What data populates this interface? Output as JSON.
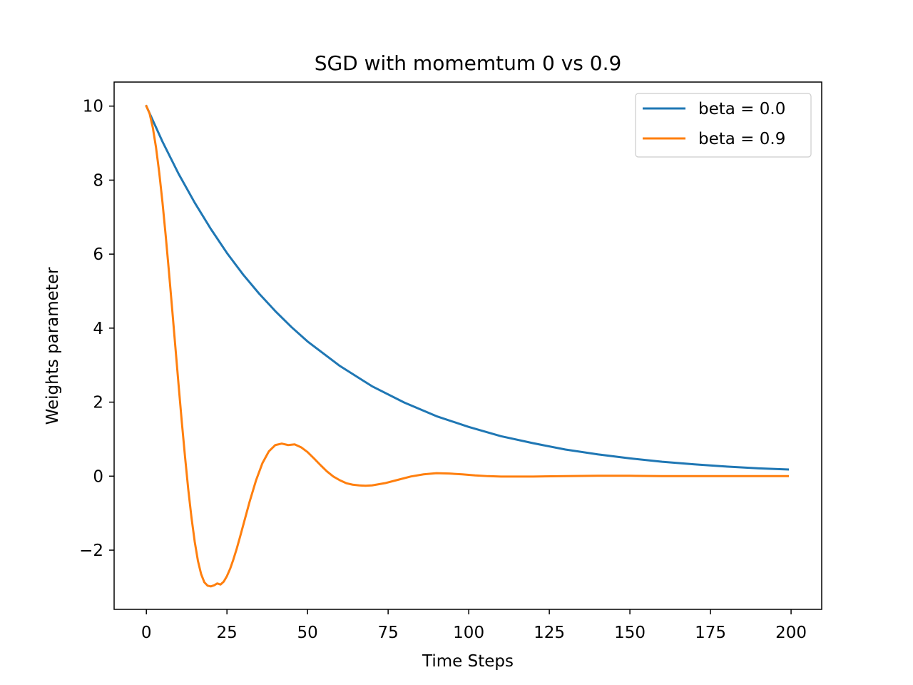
{
  "chart_data": {
    "type": "line",
    "title": "SGD with momemtum 0 vs 0.9",
    "xlabel": "Time Steps",
    "ylabel": "Weights parameter",
    "xlim": [
      -10,
      209.5
    ],
    "ylim": [
      -3.6,
      10.65
    ],
    "xticks": [
      0,
      25,
      50,
      75,
      100,
      125,
      150,
      175,
      200
    ],
    "xtick_labels": [
      "0",
      "25",
      "50",
      "75",
      "100",
      "125",
      "150",
      "175",
      "200"
    ],
    "yticks": [
      -2,
      0,
      2,
      4,
      6,
      8,
      10
    ],
    "ytick_labels": [
      "−2",
      "0",
      "2",
      "4",
      "6",
      "8",
      "10"
    ],
    "grid": false,
    "legend_position": "top-right",
    "series": [
      {
        "name": "beta = 0.0",
        "color": "#1f77b4",
        "x": [
          0,
          5,
          10,
          15,
          20,
          25,
          30,
          35,
          40,
          45,
          50,
          60,
          70,
          80,
          90,
          100,
          110,
          120,
          130,
          140,
          150,
          160,
          170,
          180,
          190,
          199
        ],
        "y": [
          10.0,
          9.04,
          8.17,
          7.39,
          6.68,
          6.03,
          5.45,
          4.93,
          4.46,
          4.03,
          3.64,
          2.98,
          2.43,
          1.99,
          1.62,
          1.33,
          1.08,
          0.89,
          0.72,
          0.59,
          0.48,
          0.39,
          0.32,
          0.26,
          0.21,
          0.18
        ]
      },
      {
        "name": "beta = 0.9",
        "color": "#ff7f0e",
        "x": [
          0,
          1,
          2,
          3,
          4,
          5,
          6,
          7,
          8,
          9,
          10,
          11,
          12,
          13,
          14,
          15,
          16,
          17,
          18,
          19,
          20,
          21,
          22,
          23,
          24,
          25,
          26,
          27,
          28,
          29,
          30,
          32,
          34,
          36,
          38,
          40,
          42,
          44,
          46,
          48,
          50,
          52,
          54,
          56,
          58,
          60,
          62,
          64,
          66,
          68,
          70,
          74,
          78,
          82,
          86,
          90,
          94,
          98,
          102,
          106,
          110,
          115,
          120,
          130,
          140,
          150,
          160,
          170,
          180,
          190,
          199
        ],
        "y": [
          10.0,
          9.8,
          9.42,
          8.88,
          8.2,
          7.4,
          6.5,
          5.53,
          4.52,
          3.49,
          2.46,
          1.46,
          0.52,
          -0.36,
          -1.12,
          -1.77,
          -2.29,
          -2.65,
          -2.87,
          -2.96,
          -2.98,
          -2.95,
          -2.9,
          -2.93,
          -2.85,
          -2.7,
          -2.5,
          -2.25,
          -1.97,
          -1.66,
          -1.34,
          -0.7,
          -0.12,
          0.35,
          0.67,
          0.84,
          0.88,
          0.84,
          0.86,
          0.78,
          0.65,
          0.48,
          0.3,
          0.13,
          -0.01,
          -0.11,
          -0.19,
          -0.23,
          -0.25,
          -0.26,
          -0.25,
          -0.19,
          -0.1,
          -0.01,
          0.05,
          0.08,
          0.07,
          0.05,
          0.02,
          0.0,
          -0.01,
          -0.01,
          -0.01,
          0.0,
          0.01,
          0.01,
          0.0,
          0.0,
          0.0,
          0.0,
          0.0
        ]
      }
    ]
  }
}
